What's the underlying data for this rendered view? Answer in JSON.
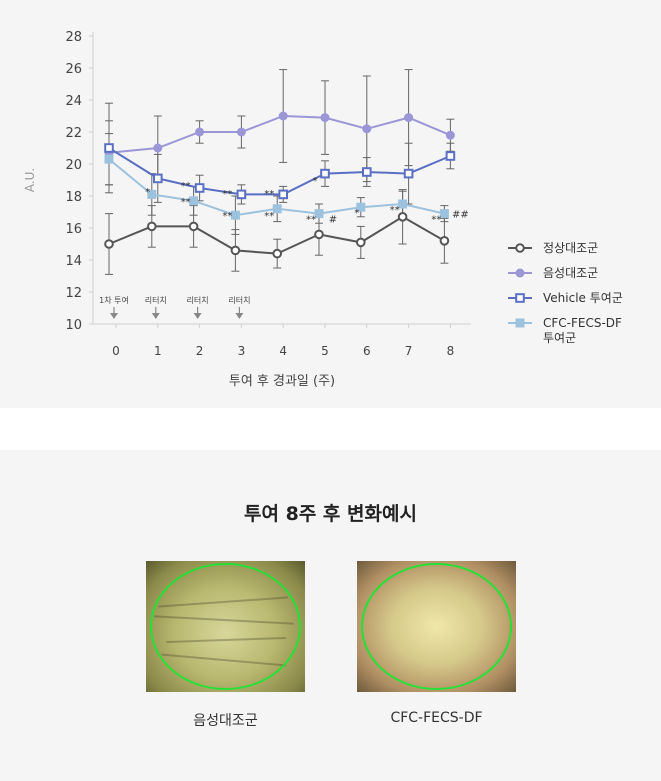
{
  "chart_data": {
    "type": "line",
    "x": [
      0,
      1,
      2,
      3,
      4,
      5,
      6,
      7,
      8
    ],
    "xlabel": "투여 후 경과일 (주)",
    "ylabel": "A.U.",
    "ylim": [
      10,
      28
    ],
    "yticks": [
      10,
      12,
      14,
      16,
      18,
      20,
      22,
      24,
      26,
      28
    ],
    "legend_position": "right",
    "series": [
      {
        "name": "정상대조군",
        "color": "#555555",
        "marker": "open-circle",
        "values": [
          15.0,
          16.1,
          16.1,
          14.6,
          14.4,
          15.6,
          15.1,
          16.7,
          15.2
        ],
        "errors": [
          1.9,
          1.3,
          1.3,
          1.3,
          0.9,
          1.3,
          1.0,
          1.7,
          1.4
        ]
      },
      {
        "name": "음성대조군",
        "color": "#9b96d6",
        "marker": "filled-circle",
        "values": [
          20.7,
          21.0,
          22.0,
          22.0,
          23.0,
          22.9,
          22.2,
          22.9,
          21.8
        ],
        "errors": [
          2.0,
          2.0,
          0.7,
          1.0,
          2.9,
          2.3,
          3.3,
          3.0,
          1.0
        ]
      },
      {
        "name": "Vehicle 투여군",
        "color": "#5a6fc4",
        "marker": "open-square",
        "values": [
          21.0,
          19.1,
          18.5,
          18.1,
          18.1,
          19.4,
          19.5,
          19.4,
          20.5
        ],
        "errors": [
          2.8,
          1.5,
          0.8,
          0.6,
          0.5,
          0.8,
          0.9,
          1.9,
          0.8
        ]
      },
      {
        "name": "CFC-FECS-DF 투여군",
        "name_lines": [
          "CFC-FECS-DF",
          "투여군"
        ],
        "color": "#9dc2de",
        "marker": "filled-square",
        "values": [
          20.3,
          18.1,
          17.7,
          16.8,
          17.2,
          16.9,
          17.3,
          17.5,
          16.9
        ],
        "errors": [
          1.6,
          1.3,
          0.9,
          1.2,
          0.8,
          0.6,
          0.6,
          0.8,
          0.5
        ]
      }
    ],
    "treatment_markers": [
      {
        "x": 0,
        "label": "1차 투여"
      },
      {
        "x": 1,
        "label": "리터치"
      },
      {
        "x": 2,
        "label": "리터치"
      },
      {
        "x": 3,
        "label": "리터치"
      }
    ],
    "significance_labels": [
      {
        "x": 1,
        "y": 18.3,
        "text": "*"
      },
      {
        "x": 2,
        "y": 18.7,
        "text": "**"
      },
      {
        "x": 2,
        "y": 17.7,
        "text": "**"
      },
      {
        "x": 3,
        "y": 18.2,
        "text": "**"
      },
      {
        "x": 3,
        "y": 16.8,
        "text": "**"
      },
      {
        "x": 4,
        "y": 18.2,
        "text": "**"
      },
      {
        "x": 4,
        "y": 16.8,
        "text": "**"
      },
      {
        "x": 5,
        "y": 19.0,
        "text": "*"
      },
      {
        "x": 5,
        "y": 16.6,
        "text": "**"
      },
      {
        "x": 5,
        "y": 16.6,
        "text": "#"
      },
      {
        "x": 6,
        "y": 17.0,
        "text": "*"
      },
      {
        "x": 7,
        "y": 17.2,
        "text": "**"
      },
      {
        "x": 8,
        "y": 16.6,
        "text": "**"
      },
      {
        "x": 8,
        "y": 16.9,
        "text": "##"
      }
    ]
  },
  "section": {
    "title": "투여 8주 후 변화예시",
    "photos": [
      {
        "caption": "음성대조군"
      },
      {
        "caption": "CFC-FECS-DF"
      }
    ]
  }
}
